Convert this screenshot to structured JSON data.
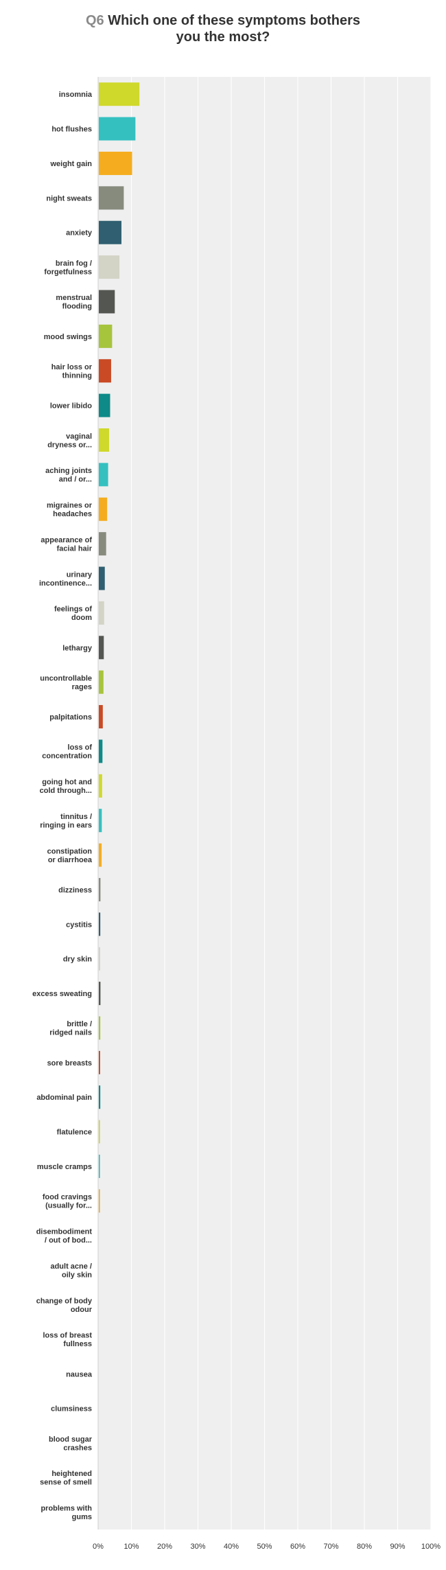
{
  "question": {
    "number": "Q6",
    "title_line1": "Which one of these symptoms bothers",
    "title_line2": "you the most?"
  },
  "chart_data": {
    "type": "bar",
    "orientation": "horizontal",
    "title": "Which one of these symptoms bothers you the most?",
    "categories": [
      "insomnia",
      "hot flushes",
      "weight gain",
      "night sweats",
      "anxiety",
      "brain fog / forgetfulness",
      "menstrual flooding",
      "mood swings",
      "hair loss or thinning",
      "lower libido",
      "vaginal dryness or...",
      "aching joints and / or...",
      "migraines or headaches",
      "appearance of facial hair",
      "urinary incontinence...",
      "feelings of doom",
      "lethargy",
      "uncontrollable rages",
      "palpitations",
      "loss of concentration",
      "going hot and cold through...",
      "tinnitus / ringing in ears",
      "constipation or diarrhoea",
      "dizziness",
      "cystitis",
      "dry skin",
      "excess sweating",
      "brittle / ridged nails",
      "sore breasts",
      "abdominal pain",
      "flatulence",
      "muscle cramps",
      "food cravings (usually for...",
      "disembodiment / out of bod...",
      "adult acne / oily skin",
      "change of body odour",
      "loss of breast fullness",
      "nausea",
      "clumsiness",
      "blood sugar crashes",
      "heightened sense of smell",
      "problems with gums"
    ],
    "category_lines": [
      [
        "insomnia"
      ],
      [
        "hot flushes"
      ],
      [
        "weight gain"
      ],
      [
        "night sweats"
      ],
      [
        "anxiety"
      ],
      [
        "brain fog /",
        "forgetfulness"
      ],
      [
        "menstrual",
        "flooding"
      ],
      [
        "mood swings"
      ],
      [
        "hair loss or",
        "thinning"
      ],
      [
        "lower libido"
      ],
      [
        "vaginal",
        "dryness or..."
      ],
      [
        "aching joints",
        "and / or..."
      ],
      [
        "migraines or",
        "headaches"
      ],
      [
        "appearance of",
        "facial hair"
      ],
      [
        "urinary",
        "incontinence..."
      ],
      [
        "feelings of",
        "doom"
      ],
      [
        "lethargy"
      ],
      [
        "uncontrollable",
        "rages"
      ],
      [
        "palpitations"
      ],
      [
        "loss of",
        "concentration"
      ],
      [
        "going hot and",
        "cold through..."
      ],
      [
        "tinnitus /",
        "ringing in ears"
      ],
      [
        "constipation",
        "or diarrhoea"
      ],
      [
        "dizziness"
      ],
      [
        "cystitis"
      ],
      [
        "dry skin"
      ],
      [
        "excess sweating"
      ],
      [
        "brittle /",
        "ridged nails"
      ],
      [
        "sore breasts"
      ],
      [
        "abdominal pain"
      ],
      [
        "flatulence"
      ],
      [
        "muscle cramps"
      ],
      [
        "food cravings",
        "(usually for..."
      ],
      [
        "disembodiment",
        "/ out of bod..."
      ],
      [
        "adult acne /",
        "oily skin"
      ],
      [
        "change of body",
        "odour"
      ],
      [
        "loss of breast",
        "fullness"
      ],
      [
        "nausea"
      ],
      [
        "clumsiness"
      ],
      [
        "blood sugar",
        "crashes"
      ],
      [
        "heightened",
        "sense of smell"
      ],
      [
        "problems with",
        "gums"
      ]
    ],
    "values": [
      12.2,
      11.0,
      10.0,
      7.5,
      6.8,
      6.2,
      4.8,
      4.0,
      3.7,
      3.4,
      3.1,
      2.8,
      2.5,
      2.2,
      1.8,
      1.6,
      1.5,
      1.4,
      1.2,
      1.1,
      1.0,
      0.9,
      0.85,
      0.5,
      0.45,
      0.4,
      0.5,
      0.45,
      0.4,
      0.45,
      0.35,
      0.35,
      0.35,
      0,
      0,
      0,
      0,
      0,
      0,
      0,
      0,
      0
    ],
    "colors": [
      "#cfd92b",
      "#35c0c0",
      "#f5ad1f",
      "#878b7e",
      "#2f5f70",
      "#d3d3c6",
      "#545751",
      "#a7c43d",
      "#c94a24",
      "#0e8a88"
    ],
    "xlim": [
      0,
      100
    ],
    "xticks": [
      "0%",
      "10%",
      "20%",
      "30%",
      "40%",
      "50%",
      "60%",
      "70%",
      "80%",
      "90%",
      "100%"
    ],
    "grid": true,
    "legend": "none"
  }
}
